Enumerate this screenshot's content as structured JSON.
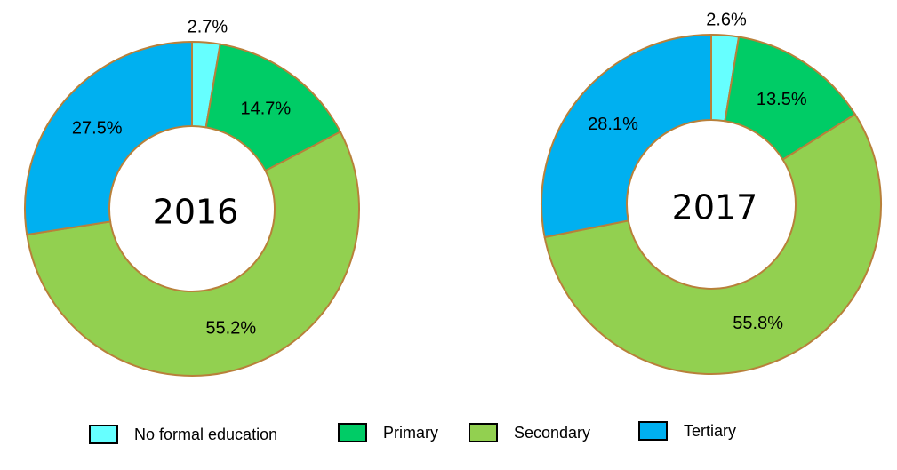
{
  "chart_data": [
    {
      "type": "pie",
      "donut": true,
      "center_label": "2016",
      "categories": [
        "No formal education",
        "Primary",
        "Secondary",
        "Tertiary"
      ],
      "values": [
        2.7,
        14.7,
        55.2,
        27.5
      ],
      "labels": [
        "2.7%",
        "14.7%",
        "55.2%",
        "27.5%"
      ]
    },
    {
      "type": "pie",
      "donut": true,
      "center_label": "2017",
      "categories": [
        "No formal education",
        "Primary",
        "Secondary",
        "Tertiary"
      ],
      "values": [
        2.6,
        13.5,
        55.8,
        28.1
      ],
      "labels": [
        "2.6%",
        "13.5%",
        "55.8%",
        "28.1%"
      ]
    }
  ],
  "legend": {
    "placement": "bottom",
    "items": [
      {
        "label": "No formal education",
        "color": "#66FFFF"
      },
      {
        "label": "Primary",
        "color": "#00CC66"
      },
      {
        "label": "Secondary",
        "color": "#92D050"
      },
      {
        "label": "Tertiary",
        "color": "#00B0F0"
      }
    ]
  },
  "slice_border_color": "#B8803A"
}
